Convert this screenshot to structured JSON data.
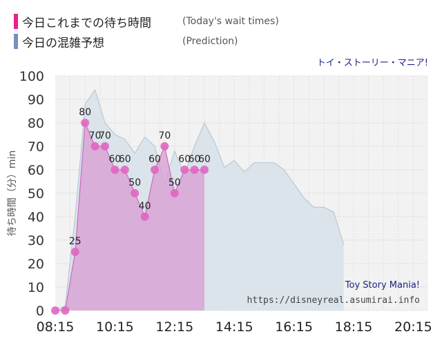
{
  "legend": {
    "today_label": "今日これまでの待ち時間",
    "today_sub": "(Today's wait times)",
    "prediction_label": "今日の混雑予想",
    "prediction_sub": "(Prediction)"
  },
  "attraction_name": "トイ・ストーリー・マニア!",
  "credit": {
    "title": "Toy Story Mania!",
    "url": "https://disneyreal.asumirai.info"
  },
  "colors": {
    "today_marker": "#ee1e8c",
    "prediction_marker": "#7690c0",
    "today_fill": "#d8a0d4",
    "today_point": "#e066c0",
    "prediction_fill": "#d8e2ea",
    "prediction_line": "#b8c8d6",
    "plot_bg": "#f2f2f2"
  },
  "chart_data": {
    "type": "area",
    "ylabel": "待ち時間（分）min",
    "ylim": [
      0,
      100
    ],
    "yticks": [
      "0",
      "10",
      "20",
      "30",
      "40",
      "50",
      "60",
      "70",
      "80",
      "90",
      "100"
    ],
    "xlim": [
      "08:15",
      "20:45"
    ],
    "xticks": [
      "08:15",
      "10:15",
      "12:15",
      "14:15",
      "16:15",
      "18:15",
      "20:15"
    ],
    "grid": true,
    "series": [
      {
        "name": "今日これまでの待ち時間",
        "points": [
          {
            "x": "08:15",
            "y": 0
          },
          {
            "x": "08:35",
            "y": 0
          },
          {
            "x": "08:55",
            "y": 25
          },
          {
            "x": "09:15",
            "y": 80
          },
          {
            "x": "09:35",
            "y": 70
          },
          {
            "x": "09:55",
            "y": 70
          },
          {
            "x": "10:15",
            "y": 60
          },
          {
            "x": "10:35",
            "y": 60
          },
          {
            "x": "10:55",
            "y": 50
          },
          {
            "x": "11:15",
            "y": 40
          },
          {
            "x": "11:35",
            "y": 60
          },
          {
            "x": "11:55",
            "y": 70
          },
          {
            "x": "12:15",
            "y": 50
          },
          {
            "x": "12:35",
            "y": 60
          },
          {
            "x": "12:55",
            "y": 60
          },
          {
            "x": "13:15",
            "y": 60
          }
        ]
      },
      {
        "name": "今日の混雑予想",
        "points": [
          {
            "x": "08:15",
            "y": 0
          },
          {
            "x": "08:35",
            "y": 2
          },
          {
            "x": "08:55",
            "y": 40
          },
          {
            "x": "09:10",
            "y": 75
          },
          {
            "x": "09:15",
            "y": 88
          },
          {
            "x": "09:35",
            "y": 94
          },
          {
            "x": "09:55",
            "y": 80
          },
          {
            "x": "10:15",
            "y": 75
          },
          {
            "x": "10:35",
            "y": 73
          },
          {
            "x": "10:55",
            "y": 67
          },
          {
            "x": "11:15",
            "y": 74
          },
          {
            "x": "11:35",
            "y": 70
          },
          {
            "x": "11:55",
            "y": 54
          },
          {
            "x": "12:15",
            "y": 68
          },
          {
            "x": "12:35",
            "y": 58
          },
          {
            "x": "12:55",
            "y": 70
          },
          {
            "x": "13:15",
            "y": 80
          },
          {
            "x": "13:35",
            "y": 72
          },
          {
            "x": "13:55",
            "y": 61
          },
          {
            "x": "14:15",
            "y": 64
          },
          {
            "x": "14:35",
            "y": 59
          },
          {
            "x": "14:55",
            "y": 63
          },
          {
            "x": "15:15",
            "y": 63
          },
          {
            "x": "15:35",
            "y": 63
          },
          {
            "x": "15:55",
            "y": 60
          },
          {
            "x": "16:15",
            "y": 54
          },
          {
            "x": "16:35",
            "y": 48
          },
          {
            "x": "16:55",
            "y": 44
          },
          {
            "x": "17:15",
            "y": 44
          },
          {
            "x": "17:35",
            "y": 42
          },
          {
            "x": "17:55",
            "y": 28
          }
        ]
      }
    ]
  }
}
